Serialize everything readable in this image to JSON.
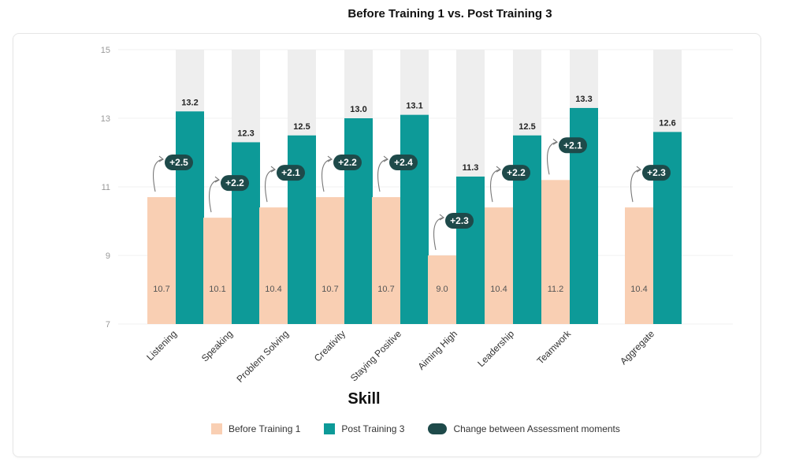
{
  "chart_data": {
    "type": "bar",
    "title": "Before Training 1 vs. Post Training 3",
    "xlabel": "Skill",
    "ylabel": "",
    "ylim": [
      7,
      15
    ],
    "yticks": [
      7,
      9,
      11,
      13,
      15
    ],
    "categories": [
      "Listening",
      "Speaking",
      "Problem Solving",
      "Creativity",
      "Staying Positive",
      "Aiming High",
      "Leadership",
      "Teamwork",
      "Aggregate"
    ],
    "series": [
      {
        "name": "Before Training 1",
        "values": [
          10.7,
          10.1,
          10.4,
          10.7,
          10.7,
          9.0,
          10.4,
          11.2,
          10.4
        ],
        "labels": [
          "10.7",
          "10.1",
          "10.4",
          "10.7",
          "10.7",
          "9.0",
          "10.4",
          "11.2",
          "10.4"
        ]
      },
      {
        "name": "Post Training 3",
        "values": [
          13.2,
          12.3,
          12.5,
          13.0,
          13.1,
          11.3,
          12.5,
          13.3,
          12.6
        ],
        "labels": [
          "13.2",
          "12.3",
          "12.5",
          "13.0",
          "13.1",
          "11.3",
          "12.5",
          "13.3",
          "12.6"
        ]
      }
    ],
    "changes": [
      "+2.5",
      "+2.2",
      "+2.1",
      "+2.2",
      "+2.4",
      "+2.3",
      "+2.2",
      "+2.1",
      "+2.3"
    ],
    "legend": [
      {
        "label": "Before Training 1",
        "color": "#f9cfb3"
      },
      {
        "label": "Post Training 3",
        "color": "#0d9a98"
      },
      {
        "label": "Change between Assessment moments",
        "color": "#1e4a4a"
      }
    ],
    "legend_position": "bottom",
    "colors": {
      "before": "#f9cfb3",
      "post": "#0d9a98",
      "background_bar": "#eeeeee",
      "change_pill": "#1e4a4a"
    }
  }
}
